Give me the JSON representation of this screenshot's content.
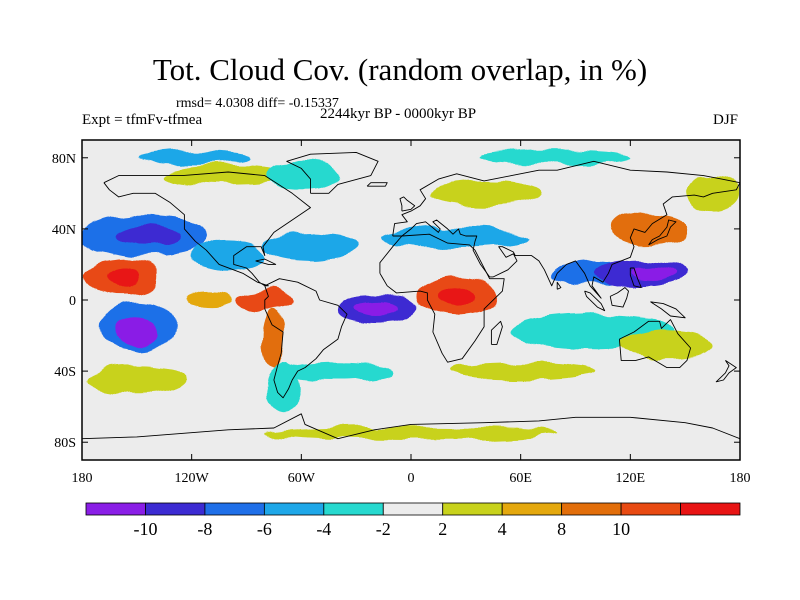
{
  "title": "Tot. Cloud Cov. (random overlap, in %)",
  "stats": "rmsd= 4.0308 diff= -0.15337",
  "experiment": "Expt = tfmFv-tfmea",
  "period": "2244kyr BP - 0000kyr BP",
  "season": "DJF",
  "map": {
    "lon_range": [
      -180,
      180
    ],
    "lat_range": [
      -90,
      90
    ],
    "lon_ticks": [
      {
        "value": -180,
        "label": "180"
      },
      {
        "value": -120,
        "label": "120W"
      },
      {
        "value": -60,
        "label": "60W"
      },
      {
        "value": 0,
        "label": "0"
      },
      {
        "value": 60,
        "label": "60E"
      },
      {
        "value": 120,
        "label": "120E"
      },
      {
        "value": 180,
        "label": "180"
      }
    ],
    "lat_ticks": [
      {
        "value": 80,
        "label": "80N"
      },
      {
        "value": 40,
        "label": "40N"
      },
      {
        "value": 0,
        "label": "0"
      },
      {
        "value": -40,
        "label": "40S"
      },
      {
        "value": -80,
        "label": "80S"
      }
    ]
  },
  "colorbar": {
    "colors": [
      "#8a1ee6",
      "#3c2bd2",
      "#1f6fe8",
      "#1ea7e8",
      "#27d9cf",
      "#ececec",
      "#c8d21c",
      "#e4a80e",
      "#e26e0a",
      "#e84a12",
      "#e81414"
    ],
    "labels": [
      {
        "after_box": 1,
        "text": "-10"
      },
      {
        "after_box": 2,
        "text": "-8"
      },
      {
        "after_box": 3,
        "text": "-6"
      },
      {
        "after_box": 4,
        "text": "-4"
      },
      {
        "after_box": 5,
        "text": "-2"
      },
      {
        "after_box": 6,
        "text": "2"
      },
      {
        "after_box": 7,
        "text": "4"
      },
      {
        "after_box": 8,
        "text": "8"
      },
      {
        "after_box": 9,
        "text": "10"
      }
    ]
  },
  "anomaly_regions": [
    {
      "lon": -158,
      "lat": 13,
      "rx": 20,
      "ry": 10,
      "level": 10
    },
    {
      "lon": -158,
      "lat": 13,
      "rx": 10,
      "ry": 5,
      "level": 11
    },
    {
      "lon": -150,
      "lat": -15,
      "rx": 20,
      "ry": 14,
      "level": 3
    },
    {
      "lon": -150,
      "lat": -18,
      "rx": 12,
      "ry": 8,
      "level": 1
    },
    {
      "lon": -145,
      "lat": 36,
      "rx": 35,
      "ry": 12,
      "level": 3
    },
    {
      "lon": -145,
      "lat": 36,
      "rx": 18,
      "ry": 6,
      "level": 2
    },
    {
      "lon": -100,
      "lat": 25,
      "rx": 20,
      "ry": 8,
      "level": 4
    },
    {
      "lon": -80,
      "lat": 0,
      "rx": 16,
      "ry": 6,
      "level": 10
    },
    {
      "lon": -110,
      "lat": 0,
      "rx": 12,
      "ry": 4,
      "level": 8
    },
    {
      "lon": -75,
      "lat": -22,
      "rx": 6,
      "ry": 16,
      "level": 9
    },
    {
      "lon": -55,
      "lat": 30,
      "rx": 25,
      "ry": 8,
      "level": 4
    },
    {
      "lon": -18,
      "lat": -5,
      "rx": 22,
      "ry": 8,
      "level": 2
    },
    {
      "lon": -18,
      "lat": -5,
      "rx": 12,
      "ry": 4,
      "level": 1
    },
    {
      "lon": 25,
      "lat": 2,
      "rx": 22,
      "ry": 12,
      "level": 10
    },
    {
      "lon": 25,
      "lat": 2,
      "rx": 10,
      "ry": 6,
      "level": 11
    },
    {
      "lon": 25,
      "lat": 35,
      "rx": 40,
      "ry": 6,
      "level": 4
    },
    {
      "lon": 130,
      "lat": 40,
      "rx": 22,
      "ry": 10,
      "level": 9
    },
    {
      "lon": 100,
      "lat": 15,
      "rx": 22,
      "ry": 7,
      "level": 3
    },
    {
      "lon": 125,
      "lat": 15,
      "rx": 25,
      "ry": 8,
      "level": 2
    },
    {
      "lon": 132,
      "lat": 15,
      "rx": 12,
      "ry": 4,
      "level": 1
    },
    {
      "lon": 100,
      "lat": -18,
      "rx": 45,
      "ry": 10,
      "level": 5
    },
    {
      "lon": 140,
      "lat": -25,
      "rx": 25,
      "ry": 8,
      "level": 7
    },
    {
      "lon": -150,
      "lat": -45,
      "rx": 28,
      "ry": 8,
      "level": 7
    },
    {
      "lon": -70,
      "lat": -50,
      "rx": 10,
      "ry": 14,
      "level": 5
    },
    {
      "lon": -40,
      "lat": -40,
      "rx": 30,
      "ry": 5,
      "level": 5
    },
    {
      "lon": 60,
      "lat": -40,
      "rx": 40,
      "ry": 5,
      "level": 7
    },
    {
      "lon": 0,
      "lat": -75,
      "rx": 80,
      "ry": 4,
      "level": 7
    },
    {
      "lon": -100,
      "lat": 70,
      "rx": 35,
      "ry": 6,
      "level": 7
    },
    {
      "lon": -60,
      "lat": 70,
      "rx": 20,
      "ry": 8,
      "level": 5
    },
    {
      "lon": 40,
      "lat": 60,
      "rx": 30,
      "ry": 7,
      "level": 7
    },
    {
      "lon": 165,
      "lat": 60,
      "rx": 15,
      "ry": 10,
      "level": 7
    },
    {
      "lon": -120,
      "lat": 80,
      "rx": 30,
      "ry": 4,
      "level": 4
    },
    {
      "lon": 80,
      "lat": 80,
      "rx": 40,
      "ry": 4,
      "level": 5
    }
  ],
  "coastlines": [
    {
      "name": "north-america",
      "points": [
        [
          -168,
          66
        ],
        [
          -160,
          70
        ],
        [
          -140,
          70
        ],
        [
          -125,
          70
        ],
        [
          -100,
          72
        ],
        [
          -80,
          70
        ],
        [
          -65,
          60
        ],
        [
          -55,
          52
        ],
        [
          -65,
          45
        ],
        [
          -75,
          38
        ],
        [
          -81,
          30
        ],
        [
          -80,
          25
        ],
        [
          -82,
          30
        ],
        [
          -90,
          30
        ],
        [
          -97,
          25
        ],
        [
          -97,
          20
        ],
        [
          -90,
          18
        ],
        [
          -87,
          15
        ],
        [
          -83,
          10
        ],
        [
          -80,
          8
        ],
        [
          -78,
          8
        ],
        [
          -84,
          10
        ],
        [
          -92,
          15
        ],
        [
          -105,
          20
        ],
        [
          -112,
          28
        ],
        [
          -118,
          33
        ],
        [
          -124,
          40
        ],
        [
          -124,
          48
        ],
        [
          -132,
          55
        ],
        [
          -140,
          60
        ],
        [
          -152,
          60
        ],
        [
          -160,
          58
        ],
        [
          -165,
          62
        ],
        [
          -168,
          66
        ]
      ]
    },
    {
      "name": "south-america",
      "points": [
        [
          -80,
          8
        ],
        [
          -72,
          12
        ],
        [
          -62,
          10
        ],
        [
          -52,
          5
        ],
        [
          -50,
          0
        ],
        [
          -40,
          -3
        ],
        [
          -35,
          -8
        ],
        [
          -38,
          -15
        ],
        [
          -40,
          -22
        ],
        [
          -48,
          -28
        ],
        [
          -52,
          -33
        ],
        [
          -58,
          -38
        ],
        [
          -62,
          -40
        ],
        [
          -65,
          -45
        ],
        [
          -67,
          -50
        ],
        [
          -70,
          -55
        ],
        [
          -73,
          -52
        ],
        [
          -75,
          -45
        ],
        [
          -73,
          -37
        ],
        [
          -71,
          -30
        ],
        [
          -70,
          -18
        ],
        [
          -76,
          -14
        ],
        [
          -80,
          -5
        ],
        [
          -80,
          0
        ],
        [
          -78,
          2
        ],
        [
          -80,
          8
        ]
      ]
    },
    {
      "name": "greenland",
      "points": [
        [
          -55,
          60
        ],
        [
          -45,
          60
        ],
        [
          -40,
          65
        ],
        [
          -22,
          70
        ],
        [
          -18,
          78
        ],
        [
          -30,
          83
        ],
        [
          -55,
          82
        ],
        [
          -68,
          78
        ],
        [
          -60,
          74
        ],
        [
          -55,
          68
        ],
        [
          -55,
          60
        ]
      ]
    },
    {
      "name": "africa",
      "points": [
        [
          -17,
          15
        ],
        [
          -17,
          21
        ],
        [
          -10,
          30
        ],
        [
          -5,
          36
        ],
        [
          10,
          37
        ],
        [
          20,
          32
        ],
        [
          32,
          31
        ],
        [
          35,
          28
        ],
        [
          43,
          12
        ],
        [
          51,
          12
        ],
        [
          50,
          5
        ],
        [
          40,
          -5
        ],
        [
          40,
          -15
        ],
        [
          35,
          -23
        ],
        [
          28,
          -33
        ],
        [
          20,
          -35
        ],
        [
          17,
          -30
        ],
        [
          12,
          -18
        ],
        [
          13,
          -8
        ],
        [
          9,
          0
        ],
        [
          9,
          4
        ],
        [
          5,
          5
        ],
        [
          -8,
          4
        ],
        [
          -13,
          8
        ],
        [
          -17,
          15
        ]
      ]
    },
    {
      "name": "eurasia",
      "points": [
        [
          -10,
          36
        ],
        [
          -9,
          43
        ],
        [
          -2,
          44
        ],
        [
          -5,
          48
        ],
        [
          0,
          50
        ],
        [
          5,
          53
        ],
        [
          8,
          57
        ],
        [
          5,
          62
        ],
        [
          15,
          68
        ],
        [
          25,
          71
        ],
        [
          40,
          67
        ],
        [
          55,
          70
        ],
        [
          70,
          73
        ],
        [
          80,
          73
        ],
        [
          100,
          78
        ],
        [
          120,
          73
        ],
        [
          140,
          72
        ],
        [
          160,
          70
        ],
        [
          170,
          68
        ],
        [
          180,
          66
        ],
        [
          178,
          62
        ],
        [
          165,
          60
        ],
        [
          160,
          58
        ],
        [
          155,
          59
        ],
        [
          143,
          58
        ],
        [
          138,
          54
        ],
        [
          140,
          48
        ],
        [
          132,
          43
        ],
        [
          128,
          38
        ],
        [
          122,
          40
        ],
        [
          120,
          35
        ],
        [
          122,
          30
        ],
        [
          120,
          24
        ],
        [
          110,
          20
        ],
        [
          108,
          15
        ],
        [
          105,
          10
        ],
        [
          100,
          13
        ],
        [
          99,
          8
        ],
        [
          104,
          1
        ],
        [
          98,
          8
        ],
        [
          95,
          15
        ],
        [
          90,
          22
        ],
        [
          85,
          20
        ],
        [
          80,
          15
        ],
        [
          77,
          8
        ],
        [
          73,
          17
        ],
        [
          70,
          22
        ],
        [
          66,
          25
        ],
        [
          57,
          25
        ],
        [
          56,
          27
        ],
        [
          50,
          30
        ],
        [
          48,
          30
        ],
        [
          52,
          24
        ],
        [
          56,
          26
        ],
        [
          58,
          22
        ],
        [
          53,
          17
        ],
        [
          45,
          13
        ],
        [
          43,
          13
        ],
        [
          38,
          20
        ],
        [
          34,
          28
        ],
        [
          35,
          33
        ],
        [
          36,
          36
        ],
        [
          30,
          36
        ],
        [
          27,
          37
        ],
        [
          26,
          40
        ],
        [
          23,
          37
        ],
        [
          20,
          40
        ],
        [
          14,
          45
        ],
        [
          12,
          44
        ],
        [
          16,
          40
        ],
        [
          15,
          38
        ],
        [
          8,
          44
        ],
        [
          3,
          43
        ],
        [
          0,
          40
        ],
        [
          -5,
          36
        ],
        [
          -10,
          36
        ]
      ]
    },
    {
      "name": "australia",
      "points": [
        [
          114,
          -22
        ],
        [
          122,
          -18
        ],
        [
          130,
          -12
        ],
        [
          136,
          -12
        ],
        [
          137,
          -16
        ],
        [
          142,
          -11
        ],
        [
          146,
          -19
        ],
        [
          153,
          -27
        ],
        [
          151,
          -34
        ],
        [
          147,
          -38
        ],
        [
          140,
          -38
        ],
        [
          135,
          -35
        ],
        [
          130,
          -32
        ],
        [
          123,
          -34
        ],
        [
          115,
          -34
        ],
        [
          114,
          -22
        ]
      ]
    },
    {
      "name": "antarctica",
      "points": [
        [
          -180,
          -78
        ],
        [
          -150,
          -77
        ],
        [
          -100,
          -73
        ],
        [
          -75,
          -72
        ],
        [
          -60,
          -64
        ],
        [
          -58,
          -70
        ],
        [
          -40,
          -78
        ],
        [
          -20,
          -73
        ],
        [
          0,
          -70
        ],
        [
          40,
          -69
        ],
        [
          70,
          -68
        ],
        [
          90,
          -66
        ],
        [
          120,
          -66
        ],
        [
          150,
          -69
        ],
        [
          165,
          -72
        ],
        [
          180,
          -78
        ]
      ]
    },
    {
      "name": "uk",
      "points": [
        [
          -5,
          50
        ],
        [
          0,
          51
        ],
        [
          2,
          53
        ],
        [
          -2,
          56
        ],
        [
          -4,
          58
        ],
        [
          -6,
          57
        ],
        [
          -5,
          53
        ],
        [
          -5,
          50
        ]
      ]
    },
    {
      "name": "japan",
      "points": [
        [
          130,
          31
        ],
        [
          135,
          34
        ],
        [
          140,
          36
        ],
        [
          142,
          41
        ],
        [
          145,
          44
        ],
        [
          141,
          45
        ],
        [
          140,
          41
        ],
        [
          136,
          36
        ],
        [
          132,
          34
        ],
        [
          130,
          31
        ]
      ]
    },
    {
      "name": "madagascar",
      "points": [
        [
          44,
          -25
        ],
        [
          47,
          -25
        ],
        [
          50,
          -15
        ],
        [
          49,
          -12
        ],
        [
          44,
          -17
        ],
        [
          44,
          -25
        ]
      ]
    },
    {
      "name": "borneo",
      "points": [
        [
          109,
          2
        ],
        [
          113,
          4
        ],
        [
          117,
          7
        ],
        [
          119,
          5
        ],
        [
          118,
          1
        ],
        [
          116,
          -4
        ],
        [
          110,
          -3
        ],
        [
          109,
          2
        ]
      ]
    },
    {
      "name": "sumatra",
      "points": [
        [
          95,
          5
        ],
        [
          98,
          4
        ],
        [
          104,
          -2
        ],
        [
          106,
          -6
        ],
        [
          102,
          -4
        ],
        [
          96,
          2
        ],
        [
          95,
          5
        ]
      ]
    },
    {
      "name": "new-guinea",
      "points": [
        [
          131,
          -1
        ],
        [
          138,
          -2
        ],
        [
          145,
          -5
        ],
        [
          150,
          -10
        ],
        [
          142,
          -9
        ],
        [
          137,
          -5
        ],
        [
          131,
          -1
        ]
      ]
    },
    {
      "name": "new-zealand",
      "points": [
        [
          172,
          -34
        ],
        [
          178,
          -38
        ],
        [
          174,
          -41
        ],
        [
          171,
          -45
        ],
        [
          167,
          -46
        ],
        [
          172,
          -41
        ],
        [
          174,
          -37
        ],
        [
          172,
          -34
        ]
      ]
    },
    {
      "name": "iceland",
      "points": [
        [
          -24,
          64
        ],
        [
          -14,
          64
        ],
        [
          -13,
          66
        ],
        [
          -22,
          66
        ],
        [
          -24,
          64
        ]
      ]
    },
    {
      "name": "philippines",
      "points": [
        [
          120,
          18
        ],
        [
          122,
          18
        ],
        [
          124,
          12
        ],
        [
          126,
          7
        ],
        [
          122,
          8
        ],
        [
          120,
          14
        ],
        [
          120,
          18
        ]
      ]
    },
    {
      "name": "sri-lanka",
      "points": [
        [
          80,
          6
        ],
        [
          82,
          7
        ],
        [
          80,
          10
        ],
        [
          80,
          6
        ]
      ]
    },
    {
      "name": "cuba",
      "points": [
        [
          -85,
          22
        ],
        [
          -80,
          23
        ],
        [
          -74,
          20
        ],
        [
          -78,
          20
        ],
        [
          -85,
          22
        ]
      ]
    }
  ]
}
